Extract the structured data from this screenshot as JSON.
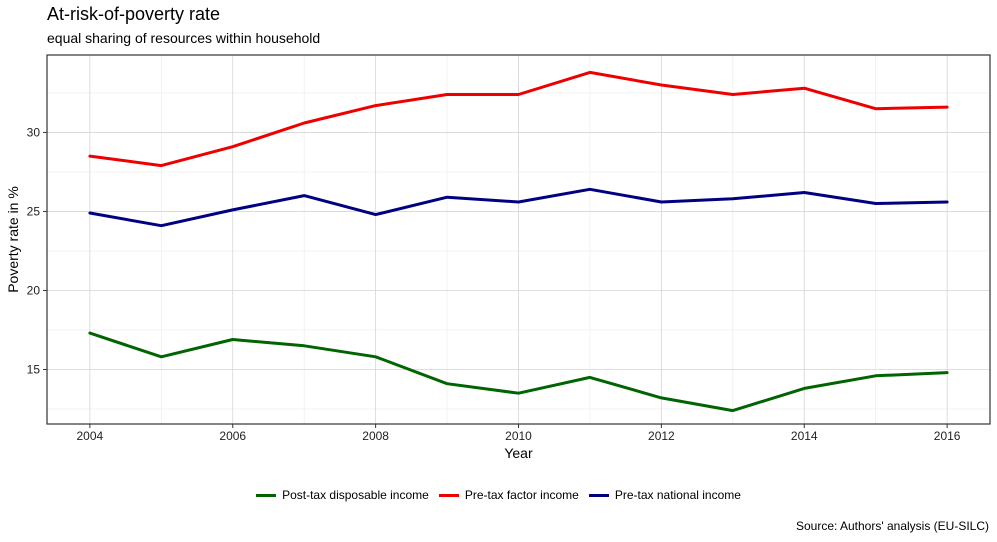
{
  "chart_data": {
    "type": "line",
    "title": "At-risk-of-poverty rate",
    "subtitle": "equal sharing of resources within household",
    "xlabel": "Year",
    "ylabel": "Poverty rate in %",
    "caption": "Source: Authors' analysis (EU-SILC)",
    "x": [
      2004,
      2005,
      2006,
      2007,
      2008,
      2009,
      2010,
      2011,
      2012,
      2013,
      2014,
      2015,
      2016
    ],
    "xticks": [
      2004,
      2006,
      2008,
      2010,
      2012,
      2014,
      2016
    ],
    "yticks": [
      15,
      20,
      25,
      30
    ],
    "xlim": [
      2003.4,
      2016.6
    ],
    "ylim": [
      11.55,
      34.9
    ],
    "grid": true,
    "legend": "bottom",
    "series": [
      {
        "name": "Post-tax disposable income",
        "color": "#006400",
        "values": [
          17.3,
          15.8,
          16.9,
          16.5,
          15.8,
          14.1,
          13.5,
          14.5,
          13.2,
          12.4,
          13.8,
          14.6,
          14.8
        ]
      },
      {
        "name": "Pre-tax factor income",
        "color": "#ee0000",
        "values": [
          28.5,
          27.9,
          29.1,
          30.6,
          31.7,
          32.4,
          32.4,
          33.8,
          33.0,
          32.4,
          32.8,
          31.5,
          31.6
        ]
      },
      {
        "name": "Pre-tax national income",
        "color": "#000080",
        "values": [
          24.9,
          24.1,
          25.1,
          26.0,
          24.8,
          25.9,
          25.6,
          26.4,
          25.6,
          25.8,
          26.2,
          25.5,
          25.6
        ]
      }
    ]
  }
}
